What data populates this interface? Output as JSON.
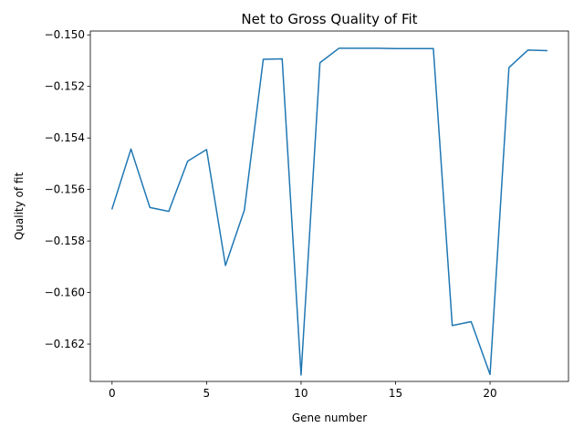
{
  "chart_data": {
    "type": "line",
    "title": "Net to Gross Quality of Fit",
    "xlabel": "Gene number",
    "ylabel": "Quality of fit",
    "xlim": [
      -1.15,
      24.15
    ],
    "ylim": [
      -0.16345,
      -0.14985
    ],
    "xticks": [
      0,
      5,
      10,
      15,
      20
    ],
    "yticks": [
      -0.162,
      -0.16,
      -0.158,
      -0.156,
      -0.154,
      -0.152,
      -0.15
    ],
    "ytick_labels": [
      "−0.162",
      "−0.160",
      "−0.158",
      "−0.156",
      "−0.154",
      "−0.152",
      "−0.150"
    ],
    "grid": false,
    "series": [
      {
        "color": "#1f77b4",
        "x": [
          0,
          1,
          2,
          3,
          4,
          5,
          6,
          7,
          8,
          9,
          10,
          11,
          12,
          13,
          14,
          15,
          16,
          17,
          18,
          19,
          20,
          21,
          22,
          23
        ],
        "values": [
          -0.15675,
          -0.15443,
          -0.1567,
          -0.15685,
          -0.1549,
          -0.15445,
          -0.15895,
          -0.1568,
          -0.15095,
          -0.15093,
          -0.1632,
          -0.15108,
          -0.15052,
          -0.15052,
          -0.15052,
          -0.15053,
          -0.15053,
          -0.15053,
          -0.16128,
          -0.16113,
          -0.16318,
          -0.15127,
          -0.15059,
          -0.15061
        ]
      }
    ]
  }
}
